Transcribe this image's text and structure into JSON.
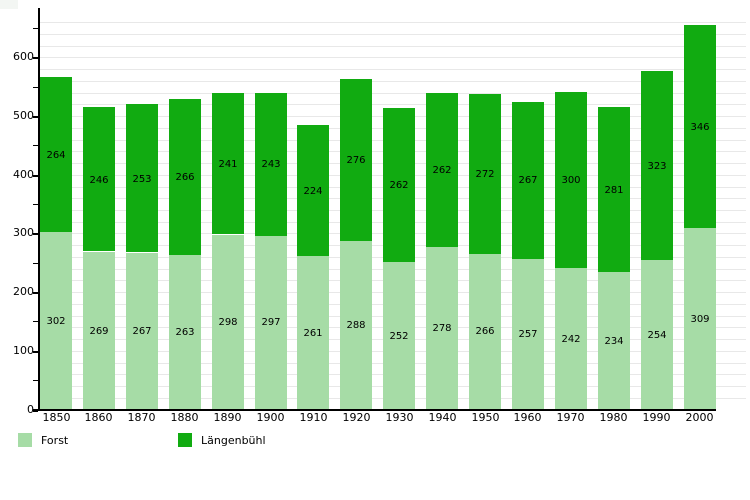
{
  "chart_data": {
    "type": "bar",
    "stacked": true,
    "title": "",
    "xlabel": "",
    "ylabel": "",
    "categories": [
      "1850",
      "1860",
      "1870",
      "1880",
      "1890",
      "1900",
      "1910",
      "1920",
      "1930",
      "1940",
      "1950",
      "1960",
      "1970",
      "1980",
      "1990",
      "2000"
    ],
    "series": [
      {
        "name": "Forst",
        "color": "#a6dca6",
        "values": [
          302,
          269,
          267,
          263,
          298,
          297,
          261,
          288,
          252,
          278,
          266,
          257,
          242,
          234,
          254,
          309
        ]
      },
      {
        "name": "Längenbühl",
        "color": "#11ab11",
        "values": [
          264,
          246,
          253,
          266,
          241,
          243,
          224,
          276,
          262,
          262,
          272,
          267,
          300,
          281,
          323,
          346
        ]
      }
    ],
    "value_labels_shown": true,
    "ylim": [
      0,
      660
    ],
    "y_tick_labels": [
      "0",
      "100",
      "200",
      "300",
      "400",
      "500",
      "600"
    ],
    "y_label_step": 100,
    "y_tick_step": 50,
    "grid_step": 20,
    "grid": true,
    "legend_position": "bottom-left",
    "colors": {
      "grid": "#e8e8e8",
      "axis": "#000000",
      "text": "#000000",
      "background": "#ffffff"
    }
  }
}
